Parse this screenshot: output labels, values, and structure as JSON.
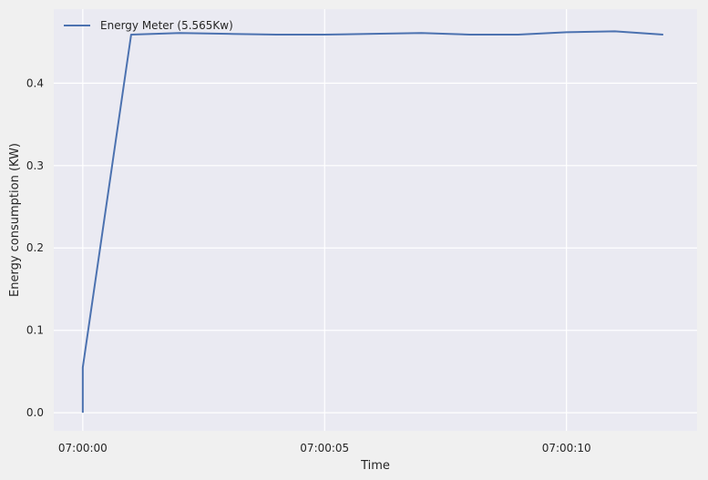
{
  "chart_data": {
    "type": "line",
    "title": "",
    "xlabel": "Time",
    "ylabel": "Energy consumption (KW)",
    "x_unit": "time (HH:MM:SS)",
    "xlim": [
      "06:59:59.4",
      "07:00:12.7"
    ],
    "ylim": [
      -0.022,
      0.49
    ],
    "x_ticks": [
      "07:00:00",
      "07:00:05",
      "07:00:10"
    ],
    "y_ticks": [
      "0.0",
      "0.1",
      "0.2",
      "0.3",
      "0.4"
    ],
    "grid": true,
    "legend_position": "top-left",
    "series": [
      {
        "name": "Energy Meter (5.565Kw)",
        "color": "#4c72b0",
        "points": [
          {
            "x": "07:00:00",
            "y": 0.0
          },
          {
            "x": "07:00:00",
            "y": 0.055
          },
          {
            "x": "07:00:01",
            "y": 0.459
          },
          {
            "x": "07:00:02",
            "y": 0.461
          },
          {
            "x": "07:00:03",
            "y": 0.46
          },
          {
            "x": "07:00:04",
            "y": 0.459
          },
          {
            "x": "07:00:05",
            "y": 0.459
          },
          {
            "x": "07:00:06",
            "y": 0.46
          },
          {
            "x": "07:00:07",
            "y": 0.461
          },
          {
            "x": "07:00:08",
            "y": 0.459
          },
          {
            "x": "07:00:09",
            "y": 0.459
          },
          {
            "x": "07:00:10",
            "y": 0.462
          },
          {
            "x": "07:00:11",
            "y": 0.463
          },
          {
            "x": "07:00:12",
            "y": 0.459
          }
        ]
      }
    ]
  }
}
